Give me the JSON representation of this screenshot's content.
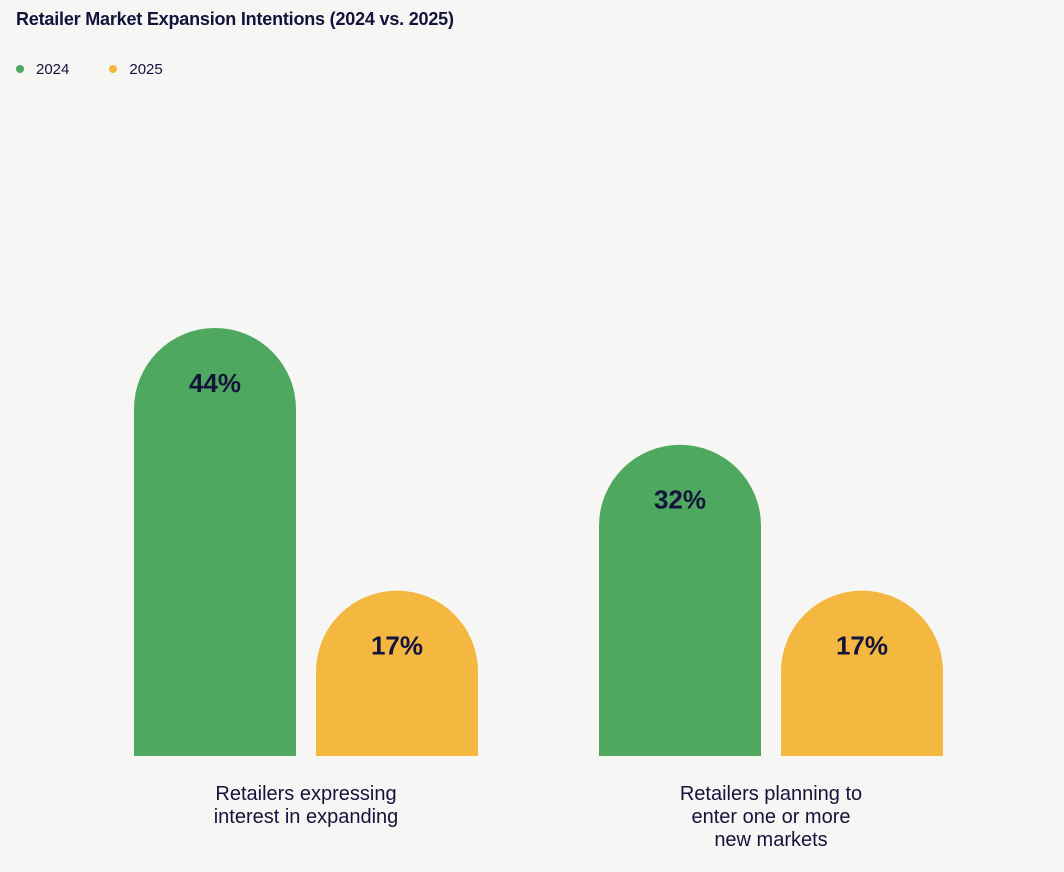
{
  "title": "Retailer Market Expansion Intentions (2024 vs. 2025)",
  "legend": [
    {
      "label": "2024",
      "color": "#4ea85f"
    },
    {
      "label": "2025",
      "color": "#f4b740"
    }
  ],
  "chart_data": {
    "type": "bar",
    "title": "Retailer Market Expansion Intentions (2024 vs. 2025)",
    "categories": [
      [
        "Retailers expressing",
        "interest in expanding"
      ],
      [
        "Retailers planning to",
        "enter one or more",
        "new markets"
      ]
    ],
    "series": [
      {
        "name": "2024",
        "color": "#4ea85f",
        "values": [
          44,
          32
        ],
        "labels": [
          "44%",
          "32%"
        ]
      },
      {
        "name": "2025",
        "color": "#f4b740",
        "values": [
          17,
          17
        ],
        "labels": [
          "17%",
          "17%"
        ]
      }
    ],
    "unit": "%",
    "ylim": [
      0,
      44
    ],
    "grid": false,
    "legend_position": "top-left"
  }
}
